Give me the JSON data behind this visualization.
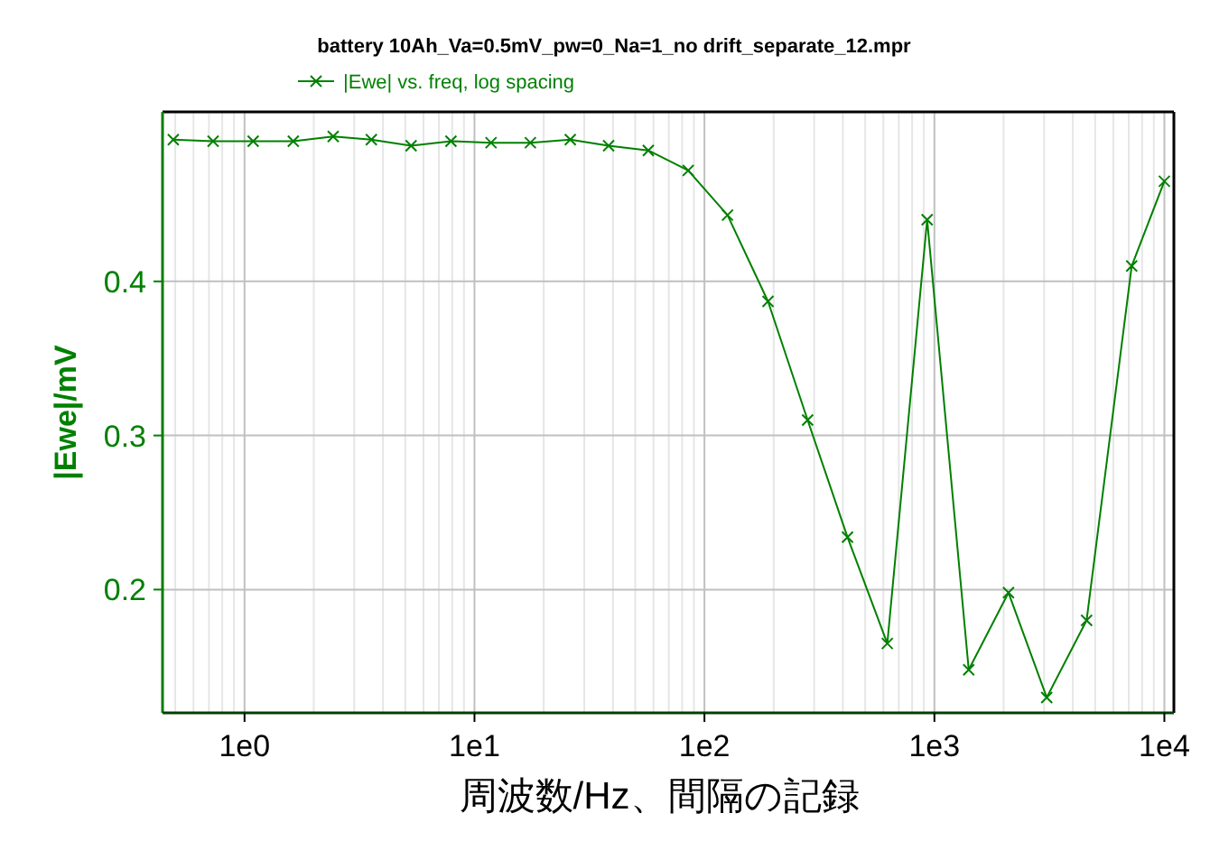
{
  "chart_data": {
    "type": "line",
    "title": "battery 10Ah_Va=0.5mV_pw=0_Na=1_no drift_separate_12.mpr",
    "xlabel": "周波数/Hz、間隔の記録",
    "ylabel": "|Ewe|/mV",
    "log": "x",
    "xlim": [
      0.44,
      11000
    ],
    "ylim": [
      0.12,
      0.51
    ],
    "xticks": [
      {
        "value": 1,
        "label": "1e0"
      },
      {
        "value": 10,
        "label": "1e1"
      },
      {
        "value": 100,
        "label": "1e2"
      },
      {
        "value": 1000,
        "label": "1e3"
      },
      {
        "value": 10000,
        "label": "1e4"
      }
    ],
    "yticks": [
      0.2,
      0.3,
      0.4
    ],
    "grid": true,
    "legend": "top",
    "marker": "cross",
    "line_style": "solid",
    "series": [
      {
        "name": "|Ewe| vs. freq, log spacing",
        "color": "#008000",
        "x": [
          0.49,
          0.73,
          1.09,
          1.63,
          2.43,
          3.56,
          5.3,
          7.9,
          11.8,
          17.5,
          26.1,
          38.3,
          57,
          85,
          126,
          189,
          281,
          419,
          624,
          930,
          1410,
          2100,
          3080,
          4590,
          7210,
          10000
        ],
        "values": [
          0.492,
          0.491,
          0.491,
          0.491,
          0.494,
          0.492,
          0.488,
          0.491,
          0.49,
          0.49,
          0.492,
          0.488,
          0.485,
          0.472,
          0.443,
          0.387,
          0.31,
          0.234,
          0.165,
          0.44,
          0.148,
          0.198,
          0.13,
          0.18,
          0.41,
          0.465
        ]
      }
    ]
  }
}
